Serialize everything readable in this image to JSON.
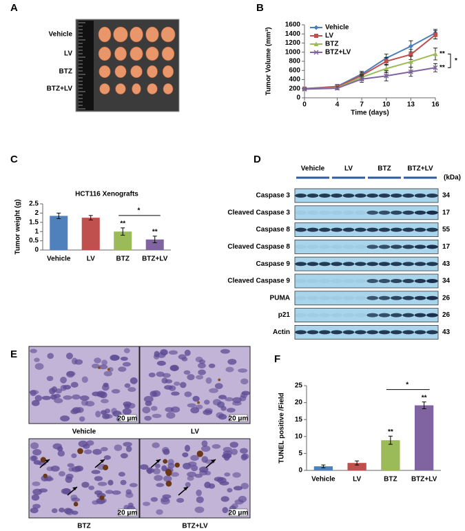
{
  "panel_letters": [
    "A",
    "B",
    "C",
    "D",
    "E",
    "F"
  ],
  "panel_a": {
    "rows": [
      "Vehicle",
      "LV",
      "BTZ",
      "BTZ+LV"
    ]
  },
  "panel_d": {
    "groups": [
      "Vehicle",
      "LV",
      "BTZ",
      "BTZ+LV"
    ],
    "unit": "(kDa)",
    "rows": [
      {
        "label": "Caspase 3",
        "kda": 34
      },
      {
        "label": "Cleaved Caspase 3",
        "kda": 17
      },
      {
        "label": "Caspase 8",
        "kda": 55
      },
      {
        "label": "Cleaved Caspase 8",
        "kda": 17
      },
      {
        "label": "Caspase 9",
        "kda": 43
      },
      {
        "label": "Cleaved Caspase 9",
        "kda": 34
      },
      {
        "label": "PUMA",
        "kda": 26
      },
      {
        "label": "p21",
        "kda": 26
      },
      {
        "label": "Actin",
        "kda": 43
      }
    ]
  },
  "panel_e": {
    "labels": [
      "Vehicle",
      "LV",
      "BTZ",
      "BTZ+LV"
    ],
    "scale": "20 μm"
  },
  "chart_data": [
    {
      "type": "line",
      "xlabel": "Time (days)",
      "ylabel": "Tumor Volume (mm³)",
      "x": [
        0,
        4,
        7,
        10,
        13,
        16
      ],
      "xlim": [
        0,
        16
      ],
      "xticks": [
        0,
        4,
        7,
        10,
        13,
        16
      ],
      "ylim": [
        0,
        1600
      ],
      "yticks": [
        0,
        200,
        400,
        600,
        800,
        1000,
        1200,
        1400,
        1600
      ],
      "legend": "upper left",
      "series": [
        {
          "name": "Vehicle",
          "color": "#4a7ebb",
          "marker": "diamond",
          "values": [
            200,
            250,
            520,
            870,
            1130,
            1420
          ],
          "errors": [
            20,
            40,
            60,
            90,
            120,
            80
          ]
        },
        {
          "name": "LV",
          "color": "#c0504d",
          "marker": "square",
          "values": [
            200,
            240,
            490,
            800,
            950,
            1380
          ],
          "errors": [
            20,
            40,
            60,
            80,
            110,
            90
          ]
        },
        {
          "name": "BTZ",
          "color": "#9bbb59",
          "marker": "triangle",
          "values": [
            190,
            220,
            450,
            640,
            790,
            960
          ],
          "errors": [
            20,
            30,
            60,
            90,
            120,
            130
          ]
        },
        {
          "name": "BTZ+LV",
          "color": "#8064a2",
          "marker": "x",
          "values": [
            190,
            210,
            410,
            480,
            570,
            660
          ],
          "errors": [
            20,
            30,
            70,
            110,
            100,
            90
          ]
        }
      ],
      "annotations": [
        "**",
        "**",
        "*"
      ]
    },
    {
      "type": "bar",
      "title": "HCT116 Xenografts",
      "ylabel": "Tumor weight (g)",
      "categories": [
        "Vehicle",
        "LV",
        "BTZ",
        "BTZ+LV"
      ],
      "values": [
        1.85,
        1.75,
        1.0,
        0.57
      ],
      "errors": [
        0.15,
        0.12,
        0.2,
        0.18
      ],
      "colors": [
        "#4f81bd",
        "#c0504d",
        "#9bbb59",
        "#8064a2"
      ],
      "ylim": [
        0,
        2.5
      ],
      "yticks": [
        0,
        0.5,
        1,
        1.5,
        2,
        2.5
      ],
      "annotations": [
        "**",
        "**",
        "*"
      ]
    },
    {
      "type": "bar",
      "ylabel": "TUNEL positive /Field",
      "categories": [
        "Vehicle",
        "LV",
        "BTZ",
        "BTZ+LV"
      ],
      "values": [
        1.2,
        2.2,
        8.9,
        19.2
      ],
      "errors": [
        0.4,
        0.6,
        1.2,
        1.0
      ],
      "colors": [
        "#4f81bd",
        "#c0504d",
        "#9bbb59",
        "#8064a2"
      ],
      "ylim": [
        0,
        25
      ],
      "yticks": [
        0,
        5,
        10,
        15,
        20,
        25
      ],
      "annotations": [
        "**",
        "**",
        "*"
      ]
    }
  ]
}
